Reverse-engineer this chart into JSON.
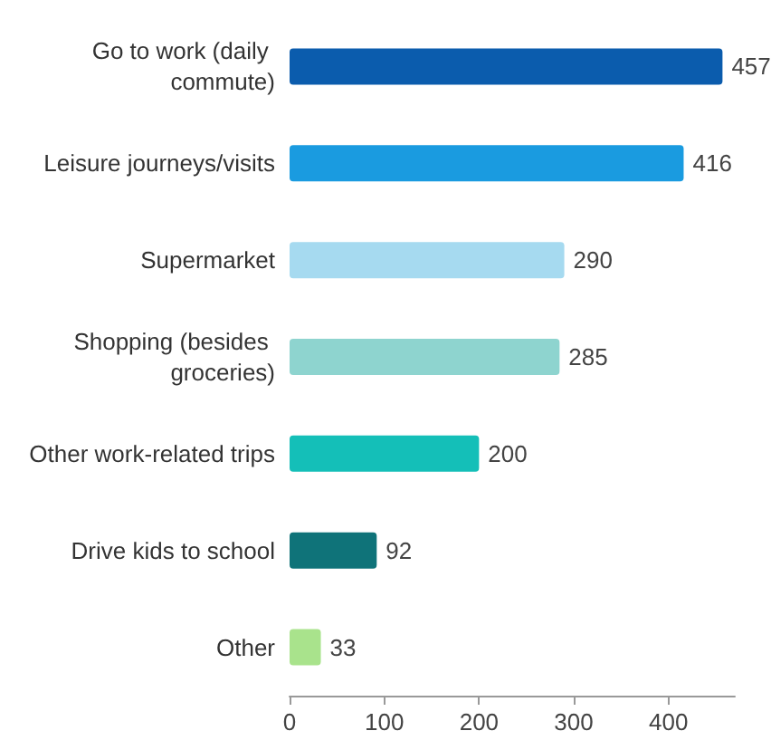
{
  "chart_data": {
    "type": "bar",
    "orientation": "horizontal",
    "categories": [
      "Go to work (daily commute)",
      "Leisure journeys/visits",
      "Supermarket",
      "Shopping (besides groceries)",
      "Other work-related trips",
      "Drive kids to school",
      "Other"
    ],
    "values": [
      457,
      416,
      290,
      285,
      200,
      92,
      33
    ],
    "colors": [
      "#0b5cad",
      "#1a9be0",
      "#a6daf0",
      "#8ed4cf",
      "#14bfb8",
      "#0f7379",
      "#a9e38c"
    ],
    "xlim": [
      0,
      470
    ],
    "xticks": [
      0,
      100,
      200,
      300,
      400
    ],
    "data_labels": true,
    "grid": false
  }
}
